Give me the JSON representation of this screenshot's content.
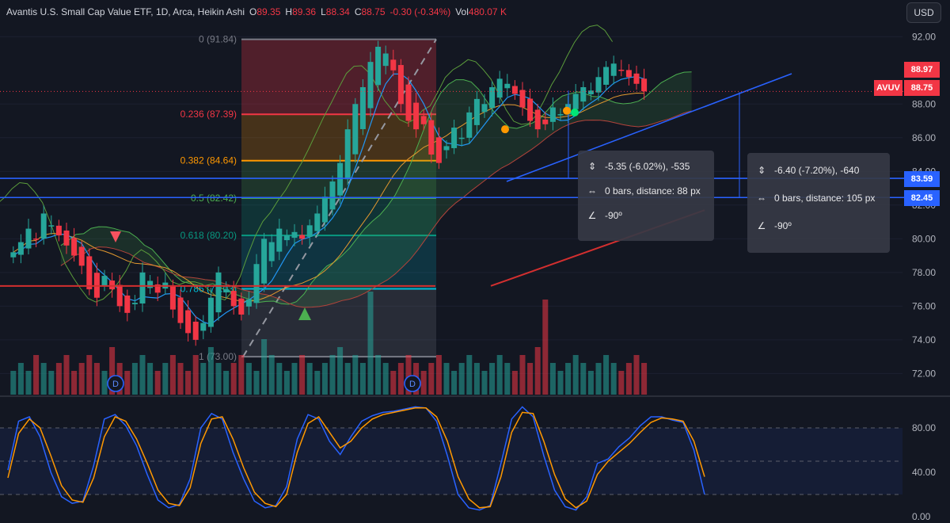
{
  "header": {
    "title": "Avantis U.S. Small Cap Value ETF, 1D, Arca, Heikin Ashi",
    "o_label": "O",
    "o_value": "89.35",
    "h_label": "H",
    "h_value": "89.36",
    "l_label": "L",
    "l_value": "88.34",
    "c_label": "C",
    "c_value": "88.75",
    "change": "-0.30 (-0.34%)",
    "vol_label": "Vol",
    "vol_value": "480.07 K"
  },
  "currency_button": "USD",
  "colors": {
    "background": "#131722",
    "up": "#26a69a",
    "down": "#f23645",
    "blue": "#2962ff",
    "ichimoku_green": "#4caf50",
    "stoch_k": "#2962ff",
    "stoch_d": "#ff9800"
  },
  "price_badges": {
    "ticker": "AVUV",
    "last_high": "88.97",
    "last": "88.75",
    "hline1": "83.59",
    "hline2": "82.45"
  },
  "measure_boxes": [
    {
      "price_change": "-5.35 (-6.02%), -535",
      "bars": "0 bars, distance: 88 px",
      "angle": "-90º"
    },
    {
      "price_change": "-6.40 (-7.20%), -640",
      "bars": "0 bars, distance: 105 px",
      "angle": "-90º"
    }
  ],
  "chart_data": [
    {
      "type": "line",
      "subtype": "heikin-ashi candlestick",
      "y_axis_ticks": [
        "92.00",
        "88.00",
        "86.00",
        "84.00",
        "82.00",
        "80.00",
        "78.00",
        "76.00",
        "74.00",
        "72.00"
      ],
      "ylim": [
        71.5,
        92.2
      ],
      "horizontal_lines": [
        83.59,
        82.45
      ],
      "fibonacci": {
        "high": 91.84,
        "low": 73.0,
        "levels": [
          {
            "ratio": "0",
            "label": "0 (91.84)",
            "value": 91.84,
            "color": "#787b86"
          },
          {
            "ratio": "0.236",
            "label": "0.236 (87.39)",
            "value": 87.39,
            "color": "#f23645"
          },
          {
            "ratio": "0.382",
            "label": "0.382 (84.64)",
            "value": 84.64,
            "color": "#ff9800"
          },
          {
            "ratio": "0.5",
            "label": "0.5 (82.42)",
            "value": 82.42,
            "color": "#4caf50"
          },
          {
            "ratio": "0.618",
            "label": "0.618 (80.20)",
            "value": 80.2,
            "color": "#089981"
          },
          {
            "ratio": "0.786",
            "label": "0.786 (77.03)",
            "value": 77.03,
            "color": "#00bcd4"
          },
          {
            "ratio": "1",
            "label": "1 (73.00)",
            "value": 73.0,
            "color": "#787b86"
          }
        ]
      },
      "price_path": [
        79.2,
        79.8,
        80.6,
        80.0,
        81.5,
        80.8,
        80.2,
        79.6,
        79.0,
        78.4,
        77.0,
        76.5,
        77.8,
        77.0,
        76.0,
        75.6,
        76.2,
        78.0,
        77.5,
        76.8,
        77.4,
        75.8,
        75.0,
        74.4,
        74.0,
        75.0,
        76.5,
        78.0,
        77.0,
        76.0,
        75.5,
        76.4,
        78.5,
        80.0,
        79.8,
        80.6,
        80.2,
        80.4,
        80.0,
        80.8,
        81.5,
        82.5,
        83.4,
        84.5,
        86.5,
        88.0,
        89.0,
        90.5,
        91.4,
        91.0,
        90.0,
        88.0,
        87.0,
        86.5,
        86.8,
        85.0,
        84.5,
        85.5,
        86.6,
        86.0,
        87.5,
        88.3,
        88.0,
        89.0,
        89.5,
        89.2,
        88.6,
        87.8,
        87.0,
        86.5,
        86.8,
        87.8,
        87.4,
        88.0,
        88.6,
        89.0,
        88.8,
        89.6,
        90.2,
        90.4,
        90.0,
        89.6,
        89.2,
        88.75
      ]
    },
    {
      "type": "bar",
      "name": "Volume",
      "values": [
        3,
        4,
        3,
        5,
        4,
        3,
        4,
        5,
        3,
        4,
        5,
        4,
        3,
        6,
        4,
        3,
        4,
        5,
        4,
        3,
        4,
        5,
        4,
        3,
        5,
        4,
        6,
        4,
        3,
        4,
        5,
        4,
        3,
        7,
        5,
        4,
        3,
        4,
        5,
        4,
        3,
        4,
        5,
        6,
        4,
        5,
        4,
        13,
        5,
        4,
        3,
        4,
        5,
        4,
        3,
        4,
        5,
        4,
        3,
        4,
        5,
        4,
        3,
        4,
        5,
        4,
        3,
        5,
        4,
        6,
        12,
        4,
        3,
        4,
        5,
        4,
        3,
        4,
        5,
        4,
        3,
        4,
        5,
        4
      ]
    },
    {
      "type": "line",
      "name": "Stochastic",
      "y_axis_ticks": [
        "80.00",
        "40.00",
        "0.00"
      ],
      "ylim": [
        0,
        100
      ],
      "band": [
        20,
        80
      ],
      "series": [
        {
          "key": "k",
          "values": [
            42,
            86,
            90,
            72,
            40,
            18,
            12,
            14,
            46,
            88,
            92,
            82,
            64,
            38,
            15,
            8,
            11,
            34,
            80,
            93,
            88,
            58,
            34,
            14,
            8,
            10,
            27,
            70,
            92,
            88,
            68,
            56,
            72,
            86,
            91,
            94,
            95,
            97,
            99,
            98,
            86,
            55,
            20,
            8,
            6,
            10,
            48,
            88,
            99,
            90,
            55,
            24,
            9,
            6,
            18,
            48,
            52,
            63,
            71,
            82,
            90,
            90,
            87,
            85,
            60,
            20
          ]
        },
        {
          "key": "d",
          "values": [
            35,
            75,
            88,
            80,
            55,
            28,
            15,
            13,
            35,
            72,
            90,
            86,
            70,
            48,
            24,
            12,
            10,
            26,
            66,
            88,
            90,
            70,
            44,
            22,
            12,
            9,
            20,
            58,
            84,
            90,
            76,
            62,
            68,
            80,
            88,
            92,
            94,
            96,
            98,
            98,
            90,
            68,
            36,
            16,
            8,
            9,
            36,
            76,
            94,
            93,
            68,
            38,
            16,
            8,
            14,
            38,
            50,
            58,
            66,
            76,
            85,
            89,
            88,
            86,
            68,
            36
          ]
        }
      ]
    }
  ]
}
